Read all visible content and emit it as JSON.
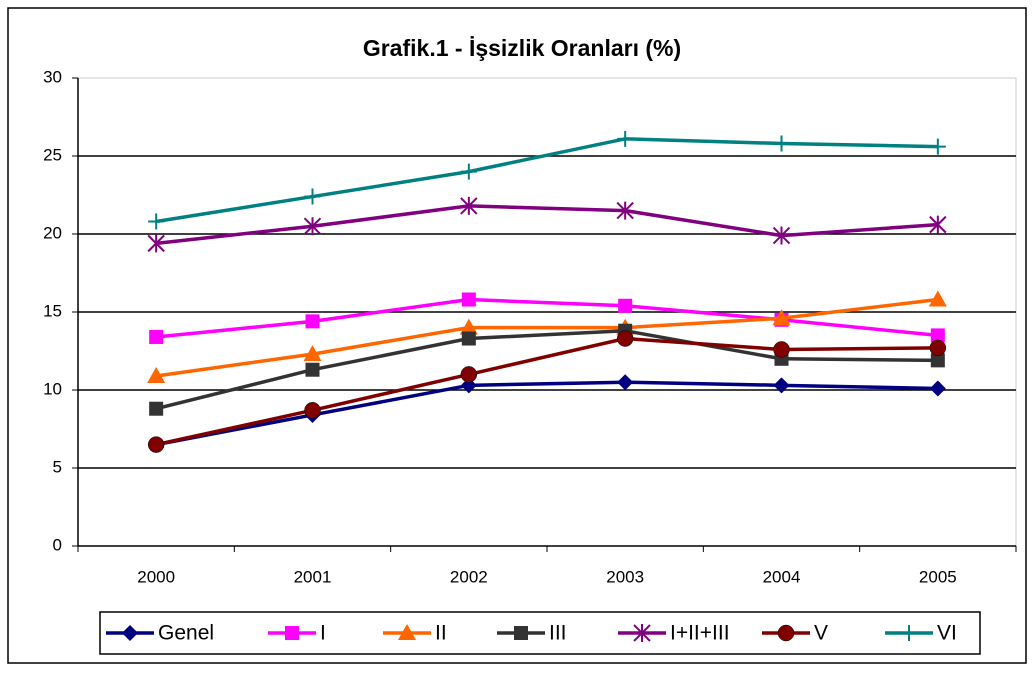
{
  "chart_data": {
    "type": "line",
    "title": "Grafik.1 - İşsizlik Oranları (%)",
    "categories": [
      "2000",
      "2001",
      "2002",
      "2003",
      "2004",
      "2005"
    ],
    "series": [
      {
        "name": "Genel",
        "color": "#000080",
        "marker": "diamond",
        "values": [
          6.5,
          8.4,
          10.3,
          10.5,
          10.3,
          10.1
        ]
      },
      {
        "name": "I",
        "color": "#ff00ff",
        "marker": "square",
        "values": [
          13.4,
          14.4,
          15.8,
          15.4,
          14.5,
          13.5
        ]
      },
      {
        "name": "II",
        "color": "#ff6600",
        "marker": "triangle",
        "values": [
          10.9,
          12.3,
          14.0,
          14.0,
          14.6,
          15.8
        ]
      },
      {
        "name": "III",
        "color": "#333333",
        "marker": "square",
        "values": [
          8.8,
          11.3,
          13.3,
          13.8,
          12.0,
          11.9
        ]
      },
      {
        "name": "I+II+III",
        "color": "#800080",
        "marker": "asterisk",
        "values": [
          19.4,
          20.5,
          21.8,
          21.5,
          19.9,
          20.6
        ]
      },
      {
        "name": "V",
        "color": "#800000",
        "marker": "circle",
        "values": [
          6.5,
          8.7,
          11.0,
          13.3,
          12.6,
          12.7
        ]
      },
      {
        "name": "VI",
        "color": "#008080",
        "marker": "plus",
        "values": [
          20.8,
          22.4,
          24.0,
          26.1,
          25.8,
          25.6
        ]
      }
    ],
    "ylim": [
      0,
      30
    ],
    "yticks": [
      0,
      5,
      10,
      15,
      20,
      25,
      30
    ],
    "grid": true,
    "legend": "bottom"
  }
}
